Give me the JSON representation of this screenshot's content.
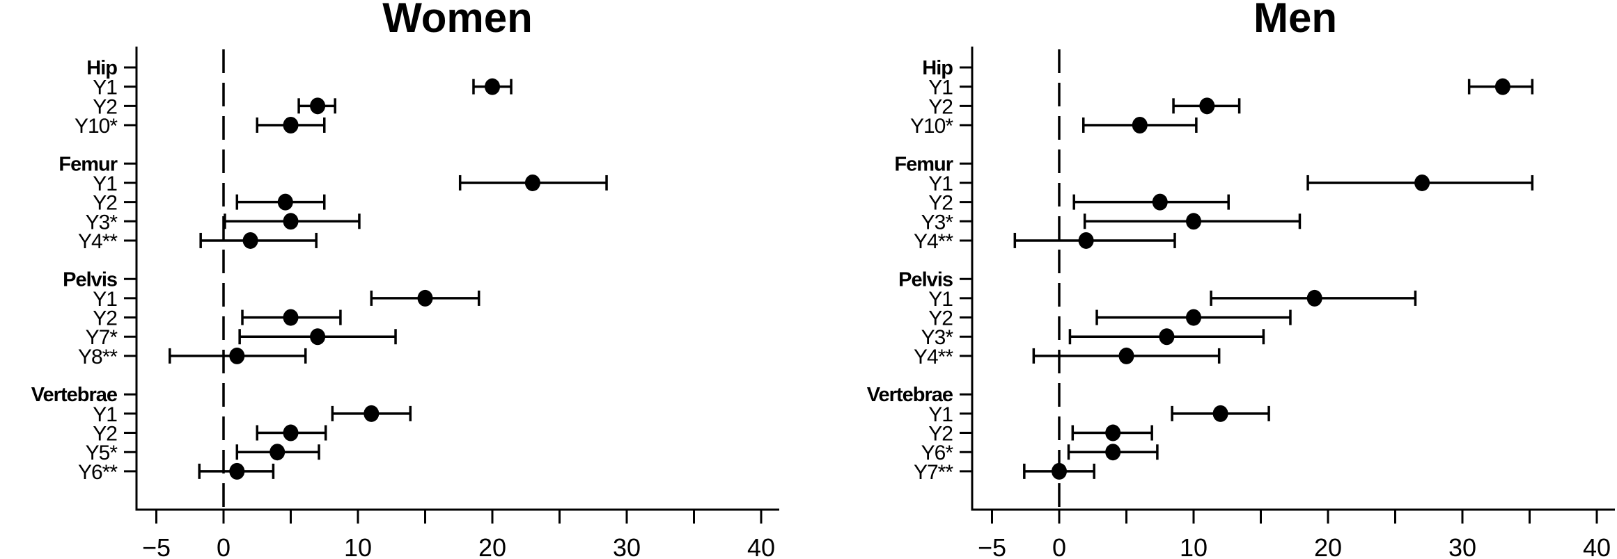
{
  "chart_data": [
    {
      "type": "forest",
      "title": "Women",
      "xlim": [
        -6.5,
        41.5
      ],
      "xticks": [
        -5,
        0,
        5,
        10,
        15,
        20,
        25,
        30,
        35,
        40
      ],
      "xtick_labels": [
        "-5",
        "0",
        "",
        "10",
        "",
        "20",
        "",
        "30",
        "",
        "40"
      ],
      "reference_line": 0,
      "groups": [
        {
          "label": "Hip",
          "rows": [
            {
              "label": "Y1",
              "estimate": 20,
              "lower": 18.6,
              "upper": 21.4
            },
            {
              "label": "Y2",
              "estimate": 7,
              "lower": 5.6,
              "upper": 8.3
            },
            {
              "label": "Y10*",
              "estimate": 5,
              "lower": 2.5,
              "upper": 7.5
            }
          ]
        },
        {
          "label": "Femur",
          "rows": [
            {
              "label": "Y1",
              "estimate": 23,
              "lower": 17.6,
              "upper": 28.5
            },
            {
              "label": "Y2",
              "estimate": 4.6,
              "lower": 1.0,
              "upper": 7.5
            },
            {
              "label": "Y3*",
              "estimate": 5,
              "lower": 0.1,
              "upper": 10.1
            },
            {
              "label": "Y4**",
              "estimate": 2,
              "lower": -1.7,
              "upper": 6.9
            }
          ]
        },
        {
          "label": "Pelvis",
          "rows": [
            {
              "label": "Y1",
              "estimate": 15,
              "lower": 11.0,
              "upper": 19.0
            },
            {
              "label": "Y2",
              "estimate": 5,
              "lower": 1.4,
              "upper": 8.7
            },
            {
              "label": "Y7*",
              "estimate": 7,
              "lower": 1.2,
              "upper": 12.8
            },
            {
              "label": "Y8**",
              "estimate": 1,
              "lower": -4.0,
              "upper": 6.1
            }
          ]
        },
        {
          "label": "Vertebrae",
          "rows": [
            {
              "label": "Y1",
              "estimate": 11,
              "lower": 8.1,
              "upper": 13.9
            },
            {
              "label": "Y2",
              "estimate": 5,
              "lower": 2.5,
              "upper": 7.6
            },
            {
              "label": "Y5*",
              "estimate": 4,
              "lower": 1.0,
              "upper": 7.1
            },
            {
              "label": "Y6**",
              "estimate": 1,
              "lower": -1.8,
              "upper": 3.7
            }
          ]
        }
      ]
    },
    {
      "type": "forest",
      "title": "Men",
      "xlim": [
        -6.5,
        41.5
      ],
      "xticks": [
        -5,
        0,
        5,
        10,
        15,
        20,
        25,
        30,
        35,
        40
      ],
      "xtick_labels": [
        "-5",
        "0",
        "",
        "10",
        "",
        "20",
        "",
        "30",
        "",
        "40"
      ],
      "reference_line": 0,
      "groups": [
        {
          "label": "Hip",
          "rows": [
            {
              "label": "Y1",
              "estimate": 33,
              "lower": 30.5,
              "upper": 35.2
            },
            {
              "label": "Y2",
              "estimate": 11,
              "lower": 8.5,
              "upper": 13.4
            },
            {
              "label": "Y10*",
              "estimate": 6,
              "lower": 1.8,
              "upper": 10.2
            }
          ]
        },
        {
          "label": "Femur",
          "rows": [
            {
              "label": "Y1",
              "estimate": 27,
              "lower": 18.5,
              "upper": 35.2
            },
            {
              "label": "Y2",
              "estimate": 7.5,
              "lower": 1.1,
              "upper": 12.6
            },
            {
              "label": "Y3*",
              "estimate": 10,
              "lower": 1.9,
              "upper": 17.9
            },
            {
              "label": "Y4**",
              "estimate": 2,
              "lower": -3.3,
              "upper": 8.6
            }
          ]
        },
        {
          "label": "Pelvis",
          "rows": [
            {
              "label": "Y1",
              "estimate": 19,
              "lower": 11.3,
              "upper": 26.5
            },
            {
              "label": "Y2",
              "estimate": 10,
              "lower": 2.8,
              "upper": 17.2
            },
            {
              "label": "Y3*",
              "estimate": 8,
              "lower": 0.8,
              "upper": 15.2
            },
            {
              "label": "Y4**",
              "estimate": 5,
              "lower": -1.9,
              "upper": 11.9
            }
          ]
        },
        {
          "label": "Vertebrae",
          "rows": [
            {
              "label": "Y1",
              "estimate": 12,
              "lower": 8.4,
              "upper": 15.6
            },
            {
              "label": "Y2",
              "estimate": 4,
              "lower": 1.0,
              "upper": 6.9
            },
            {
              "label": "Y6*",
              "estimate": 4,
              "lower": 0.7,
              "upper": 7.3
            },
            {
              "label": "Y7**",
              "estimate": 0,
              "lower": -2.6,
              "upper": 2.6
            }
          ]
        }
      ]
    }
  ]
}
